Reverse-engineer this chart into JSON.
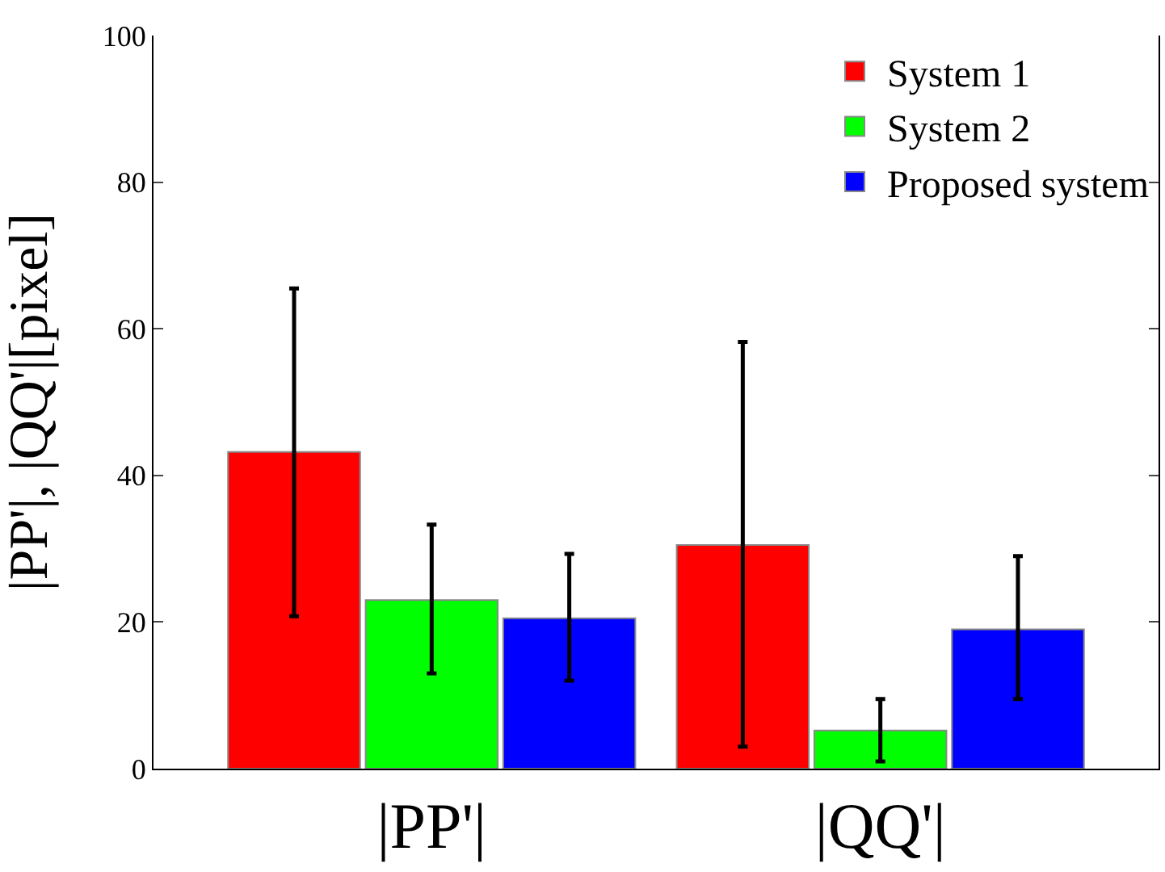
{
  "chart_data": {
    "type": "bar",
    "ylabel": "|PP'|, |QQ'|[pixel]",
    "categories": [
      "|PP'|",
      "|QQ'|"
    ],
    "series": [
      {
        "name": "System 1",
        "color": "#ff0000",
        "values": [
          43.2,
          30.5
        ],
        "errors": [
          [
            20.8,
            65.5
          ],
          [
            3,
            58.2
          ]
        ]
      },
      {
        "name": "System 2",
        "color": "#00ff00",
        "values": [
          23,
          5.2
        ],
        "errors": [
          [
            13,
            33.3
          ],
          [
            1,
            9.5
          ]
        ]
      },
      {
        "name": "Proposed system",
        "color": "#0000ff",
        "values": [
          20.5,
          19
        ],
        "errors": [
          [
            12,
            29.3
          ],
          [
            9.5,
            29
          ]
        ]
      }
    ],
    "ylim": [
      0,
      100
    ],
    "yticks": [
      0,
      20,
      40,
      60,
      80,
      100
    ],
    "grid": false,
    "legend": "top right"
  }
}
